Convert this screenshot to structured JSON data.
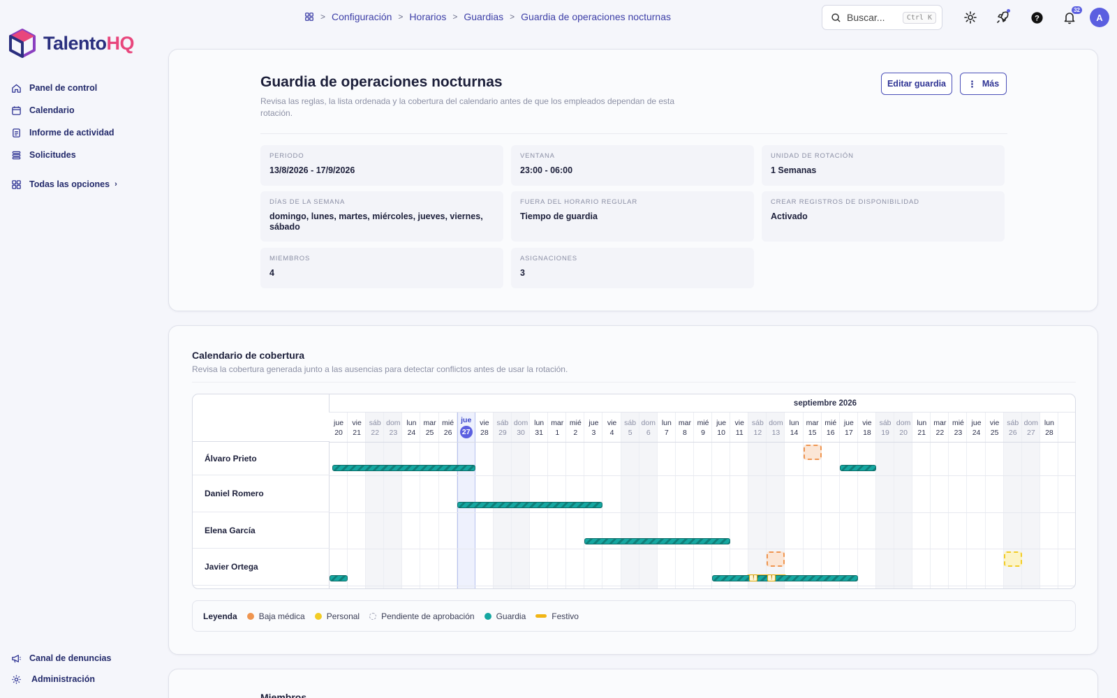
{
  "app": {
    "brand_part1": "Talento",
    "brand_part2": "HQ"
  },
  "sidebar": {
    "items": [
      {
        "label": "Panel de control",
        "icon": "home-icon"
      },
      {
        "label": "Calendario",
        "icon": "calendar-icon"
      },
      {
        "label": "Informe de actividad",
        "icon": "report-icon"
      },
      {
        "label": "Solicitudes",
        "icon": "list-icon"
      }
    ],
    "all_options": "Todas las opciones",
    "bottom": [
      {
        "label": "Canal de denuncias",
        "icon": "megaphone-icon"
      },
      {
        "label": "Administración",
        "icon": "gear-icon"
      }
    ]
  },
  "topbar": {
    "breadcrumb": [
      "Configuración",
      "Horarios",
      "Guardias",
      "Guardia de operaciones nocturnas"
    ],
    "search_label": "Buscar...",
    "search_shortcut": "Ctrl K",
    "notifications_count": "32",
    "avatar_initial": "A"
  },
  "header": {
    "title": "Guardia de operaciones nocturnas",
    "subtitle": "Revisa las reglas, la lista ordenada y la cobertura del calendario antes de que los empleados dependan de esta rotación.",
    "edit_button": "Editar guardia",
    "more_button": "Más"
  },
  "details": [
    {
      "label": "Periodo",
      "value": "13/8/2026 - 17/9/2026"
    },
    {
      "label": "Ventana",
      "value": "23:00 - 06:00"
    },
    {
      "label": "Unidad de rotación",
      "value": "1 Semanas"
    },
    {
      "label": "Días de la semana",
      "value": "domingo, lunes, martes, miércoles, jueves, viernes, sábado"
    },
    {
      "label": "Fuera del horario regular",
      "value": "Tiempo de guardia"
    },
    {
      "label": "Crear registros de disponibilidad",
      "value": "Activado"
    },
    {
      "label": "Miembros",
      "value": "4"
    },
    {
      "label": "Asignaciones",
      "value": "3"
    }
  ],
  "coverage": {
    "title": "Calendario de cobertura",
    "subtitle": "Revisa la cobertura generada junto a las ausencias para detectar conflictos antes de usar la rotación.",
    "month_label": "septiembre 2026",
    "days": [
      {
        "dow": "jue",
        "num": "20"
      },
      {
        "dow": "vie",
        "num": "21"
      },
      {
        "dow": "sáb",
        "num": "22",
        "weekend": true
      },
      {
        "dow": "dom",
        "num": "23",
        "weekend": true
      },
      {
        "dow": "lun",
        "num": "24"
      },
      {
        "dow": "mar",
        "num": "25"
      },
      {
        "dow": "mié",
        "num": "26"
      },
      {
        "dow": "jue",
        "num": "27",
        "today": true
      },
      {
        "dow": "vie",
        "num": "28"
      },
      {
        "dow": "sáb",
        "num": "29",
        "weekend": true
      },
      {
        "dow": "dom",
        "num": "30",
        "weekend": true
      },
      {
        "dow": "lun",
        "num": "31"
      },
      {
        "dow": "mar",
        "num": "1"
      },
      {
        "dow": "mié",
        "num": "2"
      },
      {
        "dow": "jue",
        "num": "3"
      },
      {
        "dow": "vie",
        "num": "4"
      },
      {
        "dow": "sáb",
        "num": "5",
        "weekend": true
      },
      {
        "dow": "dom",
        "num": "6",
        "weekend": true
      },
      {
        "dow": "lun",
        "num": "7"
      },
      {
        "dow": "mar",
        "num": "8"
      },
      {
        "dow": "mié",
        "num": "9"
      },
      {
        "dow": "jue",
        "num": "10"
      },
      {
        "dow": "vie",
        "num": "11"
      },
      {
        "dow": "sáb",
        "num": "12",
        "weekend": true
      },
      {
        "dow": "dom",
        "num": "13",
        "weekend": true
      },
      {
        "dow": "lun",
        "num": "14"
      },
      {
        "dow": "mar",
        "num": "15"
      },
      {
        "dow": "mié",
        "num": "16"
      },
      {
        "dow": "jue",
        "num": "17"
      },
      {
        "dow": "vie",
        "num": "18"
      },
      {
        "dow": "sáb",
        "num": "19",
        "weekend": true
      },
      {
        "dow": "dom",
        "num": "20",
        "weekend": true
      },
      {
        "dow": "lun",
        "num": "21"
      },
      {
        "dow": "mar",
        "num": "22"
      },
      {
        "dow": "mié",
        "num": "23"
      },
      {
        "dow": "jue",
        "num": "24"
      },
      {
        "dow": "vie",
        "num": "25"
      },
      {
        "dow": "sáb",
        "num": "26",
        "weekend": true
      },
      {
        "dow": "dom",
        "num": "27",
        "weekend": true
      },
      {
        "dow": "lun",
        "num": "28"
      }
    ],
    "members": [
      {
        "name": "Álvaro Prieto",
        "shifts": [
          {
            "start": 0,
            "end": 8
          },
          {
            "start": 28,
            "end": 30
          }
        ],
        "absences": [
          {
            "day": 26,
            "type": "sick"
          }
        ]
      },
      {
        "name": "Daniel Romero",
        "shifts": [
          {
            "start": 7,
            "end": 15
          }
        ],
        "absences": []
      },
      {
        "name": "Elena García",
        "shifts": [
          {
            "start": 14,
            "end": 22
          }
        ],
        "absences": []
      },
      {
        "name": "Javier Ortega",
        "shifts": [
          {
            "start": 0,
            "end": 1
          },
          {
            "start": 21,
            "end": 29
          }
        ],
        "holidays": [
          {
            "start": 23,
            "end": 25
          }
        ],
        "warnings": [
          23,
          24
        ],
        "absences": [
          {
            "day": 24,
            "type": "sick"
          },
          {
            "day": 37,
            "type": "personal"
          }
        ]
      }
    ],
    "legend_title": "Leyenda",
    "legend": [
      {
        "label": "Baja médica",
        "kind": "dot",
        "color": "#ef9550"
      },
      {
        "label": "Personal",
        "kind": "dot",
        "color": "#f2cc25"
      },
      {
        "label": "Pendiente de aprobación",
        "kind": "pending",
        "color": "#9a9db0"
      },
      {
        "label": "Guardia",
        "kind": "dot",
        "color": "#15a7a1"
      },
      {
        "label": "Festivo",
        "kind": "dash",
        "color": "#f1b515"
      }
    ]
  },
  "members_section": {
    "title": "Miembros"
  }
}
